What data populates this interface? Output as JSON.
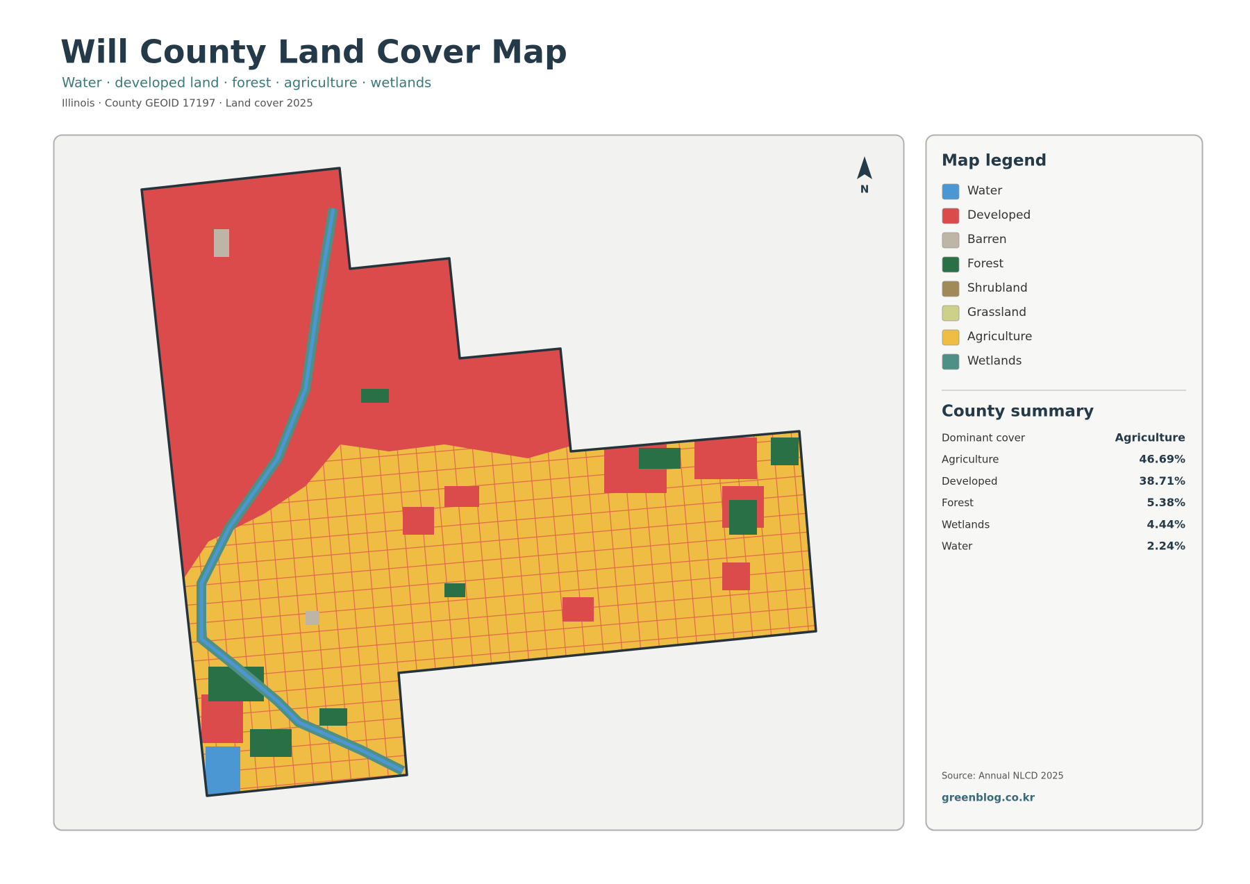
{
  "header": {
    "title": "Will County Land Cover Map",
    "subtitle": "Water · developed land · forest · agriculture · wetlands",
    "meta": "Illinois · County GEOID 17197 · Land cover 2025"
  },
  "map": {
    "north": "N"
  },
  "legend": {
    "title": "Map legend",
    "items": [
      {
        "label": "Water",
        "color": "#4a97d4"
      },
      {
        "label": "Developed",
        "color": "#db4b4b"
      },
      {
        "label": "Barren",
        "color": "#bdb6a6"
      },
      {
        "label": "Forest",
        "color": "#2a7046"
      },
      {
        "label": "Shrubland",
        "color": "#a08a58"
      },
      {
        "label": "Grassland",
        "color": "#cdd08a"
      },
      {
        "label": "Agriculture",
        "color": "#efbd44"
      },
      {
        "label": "Wetlands",
        "color": "#4e8f86"
      }
    ]
  },
  "summary": {
    "title": "County summary",
    "rows": [
      [
        "Dominant cover",
        "Agriculture"
      ],
      [
        "Agriculture",
        "46.69%"
      ],
      [
        "Developed",
        "38.71%"
      ],
      [
        "Forest",
        "5.38%"
      ],
      [
        "Wetlands",
        "4.44%"
      ],
      [
        "Water",
        "2.24%"
      ]
    ]
  },
  "footer": {
    "source": "Source: Annual NLCD 2025",
    "site": "greenblog.co.kr"
  }
}
